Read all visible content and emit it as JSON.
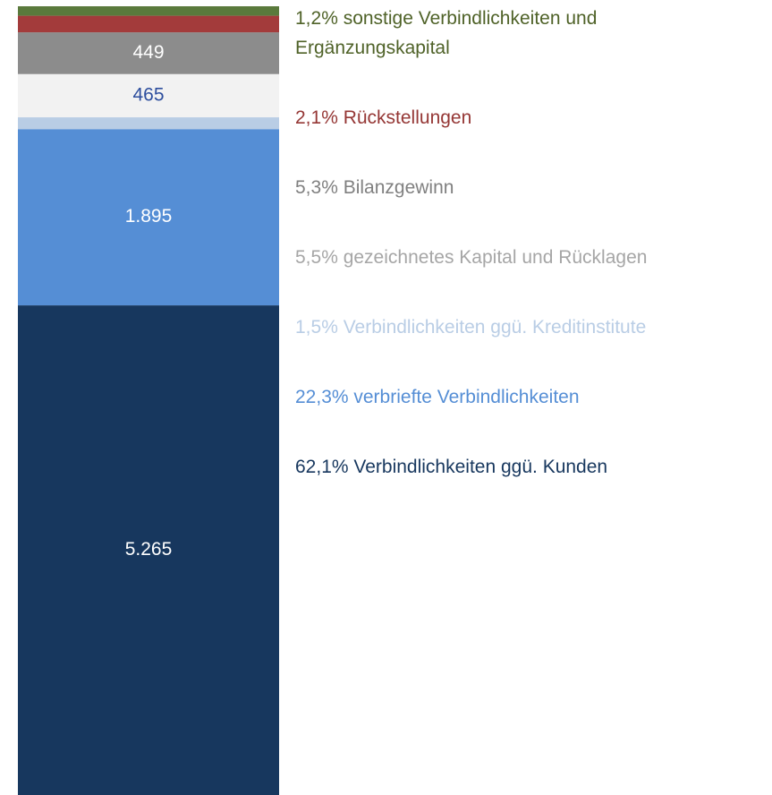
{
  "chart_data": {
    "type": "stacked_bar",
    "series": [
      {
        "name": "62,1% Verbindlichkeiten ggü. Kunden",
        "values": [
          5265
        ],
        "value_labels": [
          "5.265"
        ],
        "color": "#17375e",
        "legend_color": "#17375e",
        "label_color": "#ffffff"
      },
      {
        "name": "22,3% verbriefte Verbindlichkeiten",
        "values": [
          1895
        ],
        "value_labels": [
          "1.895"
        ],
        "color": "#558ed5",
        "legend_color": "#558ed5",
        "label_color": "#ffffff"
      },
      {
        "name": "1,5% Verbindlichkeiten ggü. Kreditinstitute",
        "values": [
          127
        ],
        "value_labels": [
          null
        ],
        "color": "#b9cde5",
        "legend_color": "#b9cde5",
        "label_color": "#ffffff"
      },
      {
        "name": "5,5% gezeichnetes Kapital und Rücklagen",
        "values": [
          465
        ],
        "value_labels": [
          "465"
        ],
        "color": "#f2f2f2",
        "legend_color": "#a6a6a6",
        "label_color": "#2e4f9e"
      },
      {
        "name": "5,3% Bilanzgewinn",
        "values": [
          449
        ],
        "value_labels": [
          "449"
        ],
        "color": "#8c8c8c",
        "legend_color": "#808080",
        "label_color": "#ffffff"
      },
      {
        "name": "2,1% Rückstellungen",
        "values": [
          178
        ],
        "value_labels": [
          null
        ],
        "color": "#a33b3b",
        "legend_color": "#953735",
        "label_color": "#ffffff"
      },
      {
        "name": "1,2% sonstige Verbindlichkeiten und Ergänzungskapital",
        "values": [
          102
        ],
        "value_labels": [
          null
        ],
        "color": "#5a7a3c",
        "legend_color": "#4f6228",
        "label_color": "#ffffff"
      }
    ]
  }
}
